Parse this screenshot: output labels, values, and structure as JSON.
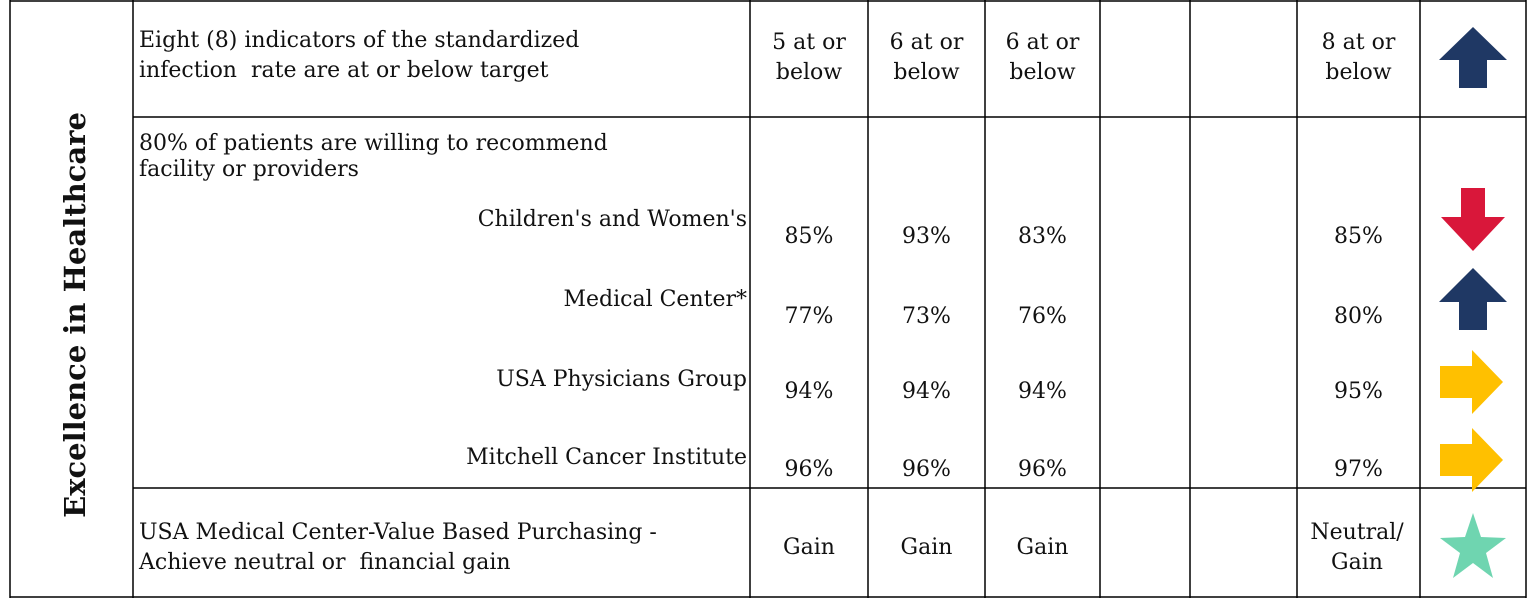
{
  "section": "Excellence in Healthcare",
  "rows": [
    {
      "measure": [
        "Eight (8) indicators of the standardized",
        "infection  rate are at or below target"
      ],
      "results": [
        "5 at or below",
        "6 at or below",
        "6 at or below"
      ],
      "target": "8 at or below"
    },
    {
      "measure": [
        "80% of patients are willing to recommend",
        "facility or providers"
      ],
      "subrows": [
        {
          "label": "Children's and Women's",
          "results": [
            "85%",
            "93%",
            "83%"
          ],
          "target": "85%"
        },
        {
          "label": "Medical Center*",
          "results": [
            "77%",
            "73%",
            "76%"
          ],
          "target": "80%"
        },
        {
          "label": "USA Physicians Group",
          "results": [
            "94%",
            "94%",
            "94%"
          ],
          "target": "95%"
        },
        {
          "label": "Mitchell Cancer Institute",
          "results": [
            "96%",
            "96%",
            "96%"
          ],
          "target": "97%"
        }
      ]
    },
    {
      "measure": [
        "USA Medical Center-Value Based Purchasing -",
        "Achieve neutral or  financial gain"
      ],
      "results": [
        "Gain",
        "Gain",
        "Gain"
      ],
      "target": "Neutral/ Gain"
    }
  ]
}
